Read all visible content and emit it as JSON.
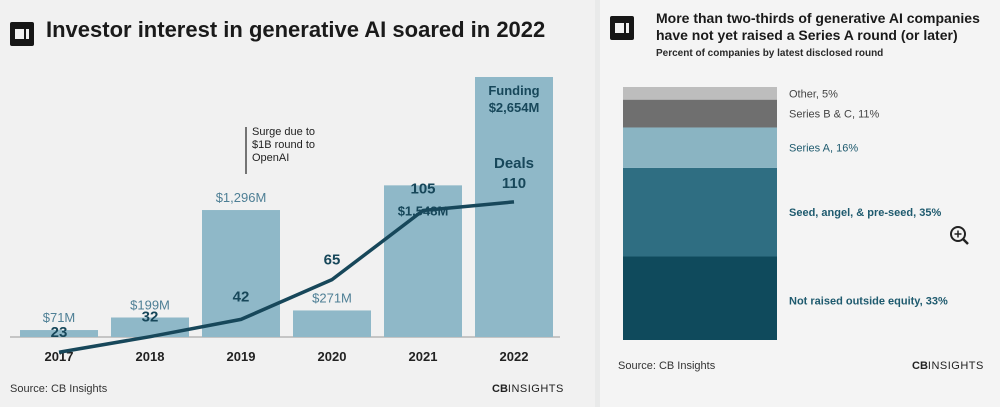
{
  "left": {
    "title": "Investor interest in generative AI soared in 2022",
    "source": "Source: CB Insights",
    "brand_bold": "CB",
    "brand_rest": "INSIGHTS",
    "funding_label_line1": "Funding",
    "deals_label": "Deals",
    "annotation_lines": [
      "Surge due to",
      "$1B round to",
      "OpenAI"
    ]
  },
  "right": {
    "title": "More than two-thirds of generative AI companies have not yet raised a Series A round (or later)",
    "subtitle": "Percent of companies by latest disclosed round",
    "source": "Source: CB Insights",
    "brand_bold": "CB",
    "brand_rest": "INSIGHTS"
  },
  "colors": {
    "bar": "#8fb8c8",
    "bar_label": "#4e7f95",
    "line": "#17475a",
    "stack": [
      "#0f4a5c",
      "#2f6e82",
      "#8ab4c2",
      "#6f6f6f",
      "#bdbdbd"
    ],
    "stack_text": "#1e5a6e"
  },
  "chart_data": [
    {
      "type": "bar",
      "title": "Investor interest in generative AI soared in 2022",
      "categories": [
        "2017",
        "2018",
        "2019",
        "2020",
        "2021",
        "2022"
      ],
      "series": [
        {
          "name": "Funding",
          "values": [
            71,
            199,
            1296,
            271,
            1548,
            2654
          ]
        },
        {
          "name": "Deals",
          "values": [
            23,
            32,
            42,
            65,
            105,
            110
          ]
        }
      ],
      "value_labels": [
        "$71M",
        "$199M",
        "$1,296M",
        "$271M",
        "$1,548M",
        "$2,654M"
      ],
      "deal_labels": [
        "23",
        "32",
        "42",
        "65",
        "105",
        "110"
      ],
      "ylim": [
        0,
        2654
      ],
      "deals_ylim": [
        0,
        140
      ],
      "grid": false
    },
    {
      "type": "bar",
      "title": "More than two-thirds of generative AI companies have not yet raised a Series A round (or later)",
      "subtitle": "Percent of companies by latest disclosed round",
      "categories": [
        "Not raised outside equity",
        "Seed, angel, & pre-seed",
        "Series A",
        "Series B & C",
        "Other"
      ],
      "values": [
        33,
        35,
        16,
        11,
        5
      ],
      "labels": [
        "Not raised outside equity, 33%",
        "Seed, angel, & pre-seed, 35%",
        "Series A, 16%",
        "Series B & C, 11%",
        "Other, 5%"
      ],
      "stacked": true
    }
  ]
}
